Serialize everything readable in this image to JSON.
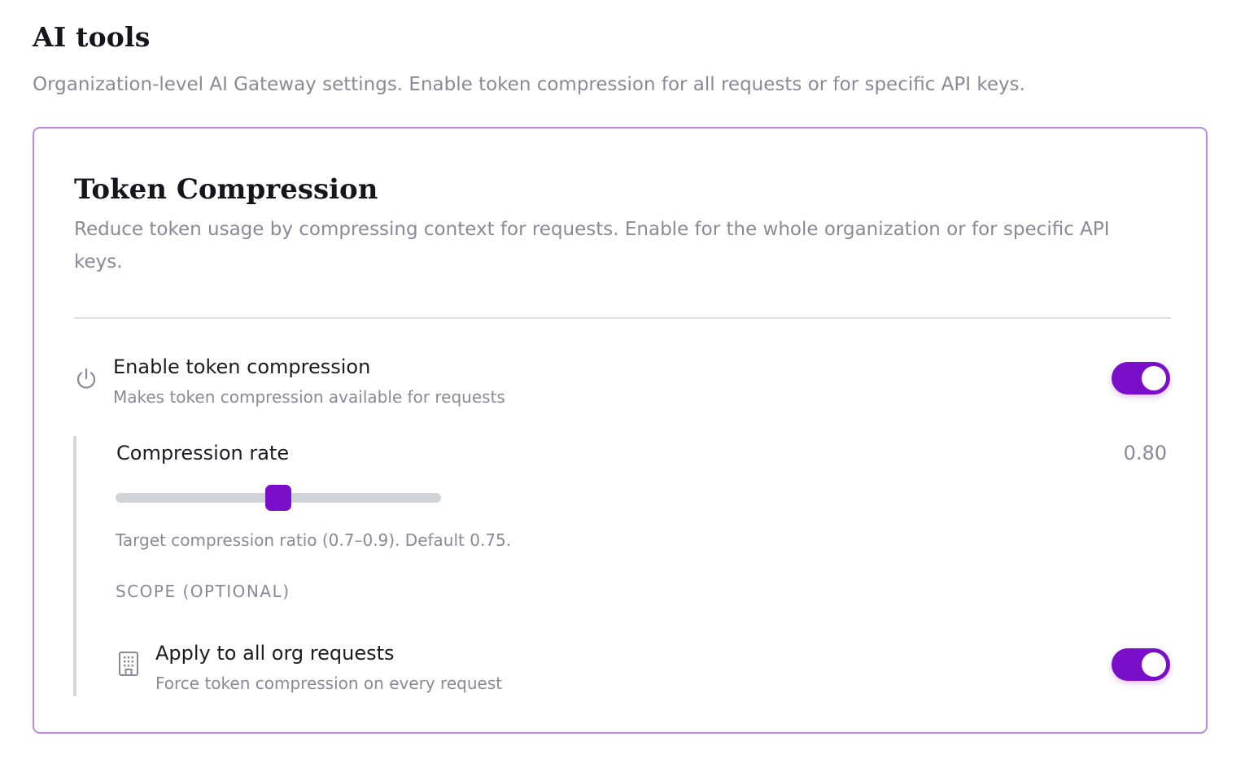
{
  "page": {
    "title": "AI tools",
    "subtitle": "Organization-level AI Gateway settings. Enable token compression for all requests or for specific API keys."
  },
  "card": {
    "title": "Token Compression",
    "description": "Reduce token usage by compressing context for requests. Enable for the whole organization or for specific API keys.",
    "enable": {
      "icon": "power-icon",
      "title": "Enable token compression",
      "subtitle": "Makes token compression available for requests",
      "enabled": true
    },
    "compression_rate": {
      "label": "Compression rate",
      "value": 0.8,
      "value_text": "0.80",
      "slider_fraction": 0.5,
      "hint": "Target compression ratio (0.7–0.9). Default 0.75."
    },
    "scope": {
      "label": "SCOPE (OPTIONAL)",
      "apply_all": {
        "icon": "building-icon",
        "title": "Apply to all org requests",
        "subtitle": "Force token compression on every request",
        "enabled": true
      }
    }
  },
  "colors": {
    "accent": "#7a0fc9",
    "card_border": "#b98be0",
    "muted_text": "#8b8898",
    "divider": "#dedde3"
  }
}
